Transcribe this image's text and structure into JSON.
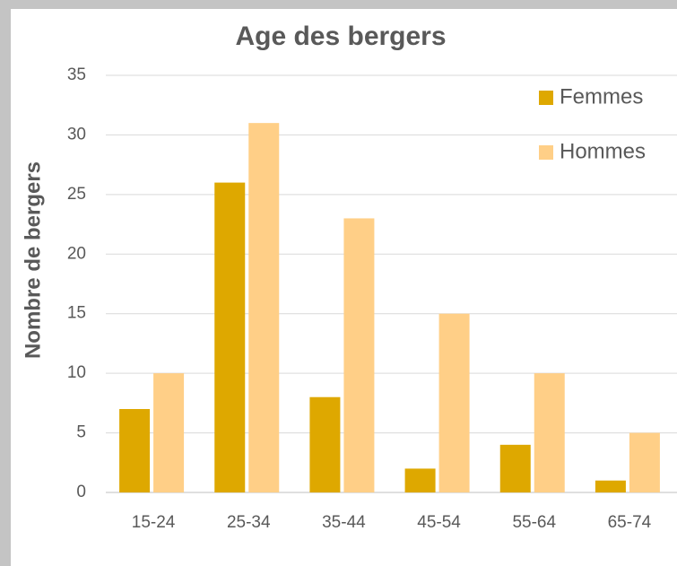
{
  "chart_data": {
    "type": "bar",
    "title": "Age des bergers",
    "y_label": "Nombre de bergers",
    "categories": [
      "15-24",
      "25-34",
      "35-44",
      "45-54",
      "55-64",
      "65-74"
    ],
    "series": [
      {
        "name": "Femmes",
        "color": "#dea800",
        "values": [
          7,
          26,
          8,
          2,
          4,
          1
        ]
      },
      {
        "name": "Hommes",
        "color": "#ffcf87",
        "values": [
          10,
          31,
          23,
          15,
          10,
          5
        ]
      }
    ],
    "ylim": [
      0,
      35
    ],
    "yticks": [
      0,
      5,
      10,
      15,
      20,
      25,
      30,
      35
    ],
    "grid": true,
    "legend": "top-right"
  }
}
